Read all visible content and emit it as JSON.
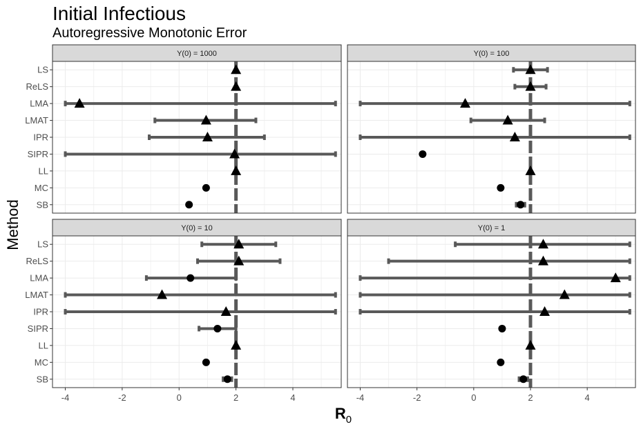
{
  "chart_data": {
    "type": "scatter",
    "title": "Initial Infectious",
    "subtitle": "Autoregressive Monotonic Error",
    "xlabel": "R",
    "xlabel_sub": "0",
    "ylabel": "Method",
    "xlim": [
      -4.45,
      5.7
    ],
    "xticks": [
      -4,
      -2,
      0,
      2,
      4
    ],
    "reference_line": 2,
    "methods": [
      "LS",
      "ReLS",
      "LMA",
      "LMAT",
      "IPR",
      "SIPR",
      "LL",
      "MC",
      "SB"
    ],
    "grid": true,
    "legend": "none",
    "colors": {
      "interval": "#595959",
      "point": "#000000",
      "reference": "#595959",
      "strip": "#d9d9d9",
      "grid": "#ebebeb",
      "border": "#333333"
    },
    "panels": [
      {
        "label": "Y(0) = 1000",
        "rows": [
          {
            "method": "LS",
            "estimate": 2.0,
            "lower": null,
            "upper": null,
            "marker": "triangle"
          },
          {
            "method": "ReLS",
            "estimate": 2.0,
            "lower": null,
            "upper": null,
            "marker": "triangle"
          },
          {
            "method": "LMA",
            "estimate": -3.5,
            "lower": -4.0,
            "upper": 5.5,
            "marker": "triangle"
          },
          {
            "method": "LMAT",
            "estimate": 0.95,
            "lower": -0.85,
            "upper": 2.7,
            "marker": "triangle"
          },
          {
            "method": "IPR",
            "estimate": 1.0,
            "lower": -1.05,
            "upper": 3.0,
            "marker": "triangle"
          },
          {
            "method": "SIPR",
            "estimate": 1.95,
            "lower": -4.0,
            "upper": 5.5,
            "marker": "triangle"
          },
          {
            "method": "LL",
            "estimate": 2.0,
            "lower": null,
            "upper": null,
            "marker": "triangle"
          },
          {
            "method": "MC",
            "estimate": 0.95,
            "lower": null,
            "upper": null,
            "marker": "circle"
          },
          {
            "method": "SB",
            "estimate": 0.35,
            "lower": null,
            "upper": null,
            "marker": "circle"
          }
        ]
      },
      {
        "label": "Y(0) = 100",
        "rows": [
          {
            "method": "LS",
            "estimate": 2.0,
            "lower": 1.4,
            "upper": 2.6,
            "marker": "triangle"
          },
          {
            "method": "ReLS",
            "estimate": 2.0,
            "lower": 1.45,
            "upper": 2.55,
            "marker": "triangle"
          },
          {
            "method": "LMA",
            "estimate": -0.3,
            "lower": -4.0,
            "upper": 5.5,
            "marker": "triangle"
          },
          {
            "method": "LMAT",
            "estimate": 1.2,
            "lower": -0.1,
            "upper": 2.5,
            "marker": "triangle"
          },
          {
            "method": "IPR",
            "estimate": 1.45,
            "lower": -4.0,
            "upper": 5.5,
            "marker": "triangle"
          },
          {
            "method": "SIPR",
            "estimate": -1.8,
            "lower": null,
            "upper": null,
            "marker": "circle"
          },
          {
            "method": "LL",
            "estimate": 2.0,
            "lower": null,
            "upper": null,
            "marker": "triangle"
          },
          {
            "method": "MC",
            "estimate": 0.95,
            "lower": null,
            "upper": null,
            "marker": "circle"
          },
          {
            "method": "SB",
            "estimate": 1.65,
            "lower": 1.5,
            "upper": 1.8,
            "marker": "circle"
          }
        ]
      },
      {
        "label": "Y(0) = 10",
        "rows": [
          {
            "method": "LS",
            "estimate": 2.1,
            "lower": 0.8,
            "upper": 3.4,
            "marker": "triangle"
          },
          {
            "method": "ReLS",
            "estimate": 2.1,
            "lower": 0.65,
            "upper": 3.55,
            "marker": "triangle"
          },
          {
            "method": "LMA",
            "estimate": 0.4,
            "lower": -1.15,
            "upper": 2.0,
            "marker": "circle"
          },
          {
            "method": "LMAT",
            "estimate": -0.6,
            "lower": -4.0,
            "upper": 5.5,
            "marker": "triangle"
          },
          {
            "method": "IPR",
            "estimate": 1.65,
            "lower": -4.0,
            "upper": 5.5,
            "marker": "triangle"
          },
          {
            "method": "SIPR",
            "estimate": 1.35,
            "lower": 0.7,
            "upper": 2.0,
            "marker": "circle"
          },
          {
            "method": "LL",
            "estimate": 2.0,
            "lower": null,
            "upper": null,
            "marker": "triangle"
          },
          {
            "method": "MC",
            "estimate": 0.95,
            "lower": null,
            "upper": null,
            "marker": "circle"
          },
          {
            "method": "SB",
            "estimate": 1.7,
            "lower": 1.55,
            "upper": 1.85,
            "marker": "circle"
          }
        ]
      },
      {
        "label": "Y(0) = 1",
        "rows": [
          {
            "method": "LS",
            "estimate": 2.45,
            "lower": -0.65,
            "upper": 5.5,
            "marker": "triangle"
          },
          {
            "method": "ReLS",
            "estimate": 2.45,
            "lower": -3.0,
            "upper": 5.5,
            "marker": "triangle"
          },
          {
            "method": "LMA",
            "estimate": 5.0,
            "lower": -4.0,
            "upper": 5.5,
            "marker": "triangle"
          },
          {
            "method": "LMAT",
            "estimate": 3.2,
            "lower": -4.0,
            "upper": 5.5,
            "marker": "triangle"
          },
          {
            "method": "IPR",
            "estimate": 2.5,
            "lower": -4.0,
            "upper": 5.5,
            "marker": "triangle"
          },
          {
            "method": "SIPR",
            "estimate": 1.0,
            "lower": null,
            "upper": null,
            "marker": "circle"
          },
          {
            "method": "LL",
            "estimate": 2.0,
            "lower": null,
            "upper": null,
            "marker": "triangle"
          },
          {
            "method": "MC",
            "estimate": 0.95,
            "lower": null,
            "upper": null,
            "marker": "circle"
          },
          {
            "method": "SB",
            "estimate": 1.75,
            "lower": 1.6,
            "upper": 1.9,
            "marker": "circle"
          }
        ]
      }
    ]
  }
}
